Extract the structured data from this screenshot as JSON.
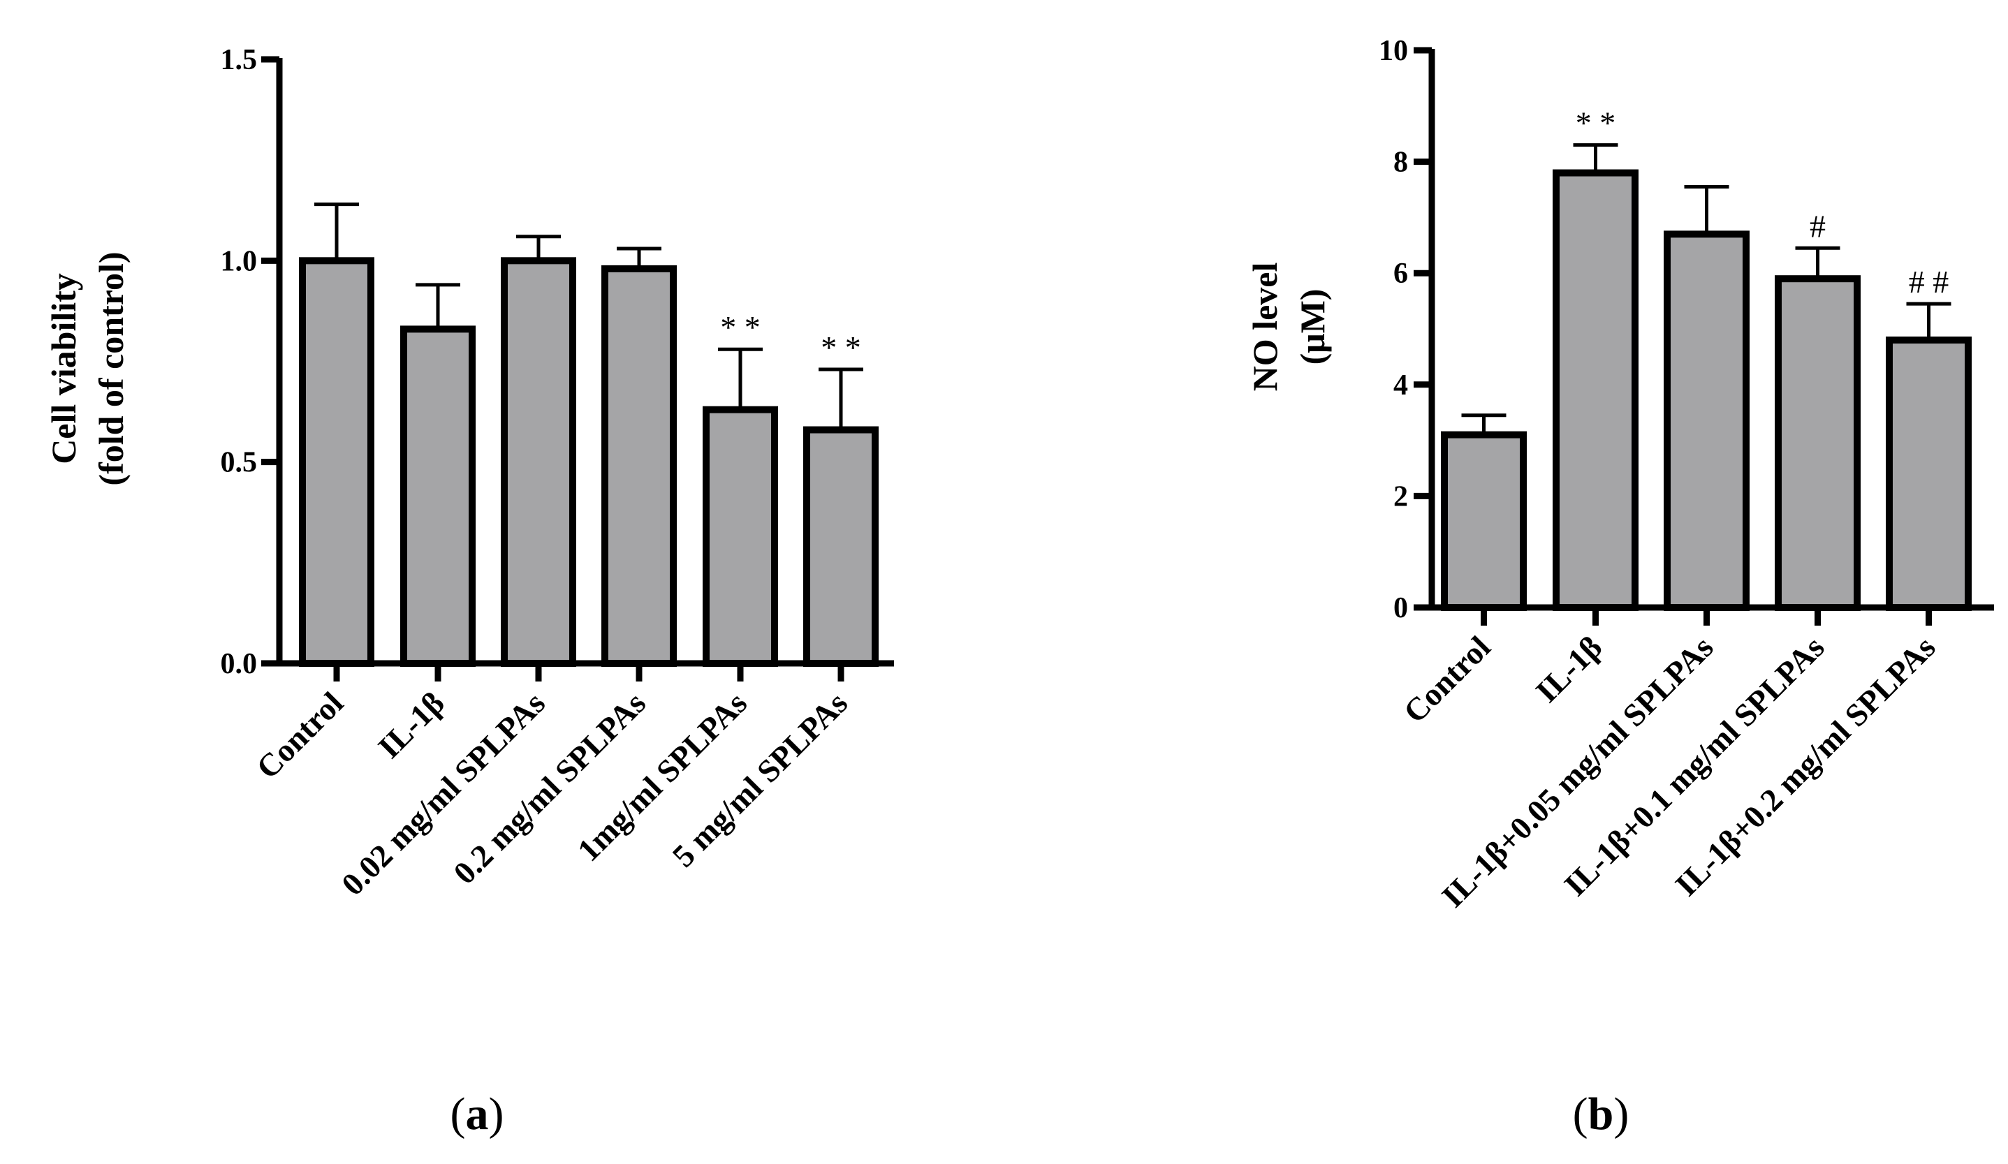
{
  "colors": {
    "bar_fill": "#a5a5a7",
    "bar_stroke": "#000000",
    "axis": "#000000"
  },
  "chart_data": [
    {
      "type": "bar",
      "panel_label": "a",
      "ylabel_line1": "Cell viability",
      "ylabel_line2": "(fold of control)",
      "ylim": [
        0,
        1.5
      ],
      "yticks": [
        0.0,
        0.5,
        1.0,
        1.5
      ],
      "ytick_labels": [
        "0.0",
        "0.5",
        "1.0",
        "1.5"
      ],
      "categories": [
        "Control",
        "IL-1β",
        "0.02 mg/ml SPLPAs",
        "0.2 mg/ml SPLPAs",
        "1mg/ml SPLPAs",
        "5 mg/ml SPLPAs"
      ],
      "values": [
        1.0,
        0.83,
        1.0,
        0.98,
        0.63,
        0.58
      ],
      "errors": [
        0.14,
        0.11,
        0.06,
        0.05,
        0.15,
        0.15
      ],
      "annotations": [
        "",
        "",
        "",
        "",
        "**",
        "**"
      ]
    },
    {
      "type": "bar",
      "panel_label": "b",
      "ylabel_line1": "NO level",
      "ylabel_line2": "(μM)",
      "ylim": [
        0,
        10
      ],
      "yticks": [
        0,
        2,
        4,
        6,
        8,
        10
      ],
      "ytick_labels": [
        "0",
        "2",
        "4",
        "6",
        "8",
        "10"
      ],
      "categories": [
        "Control",
        "IL-1β",
        "IL-1β+0.05 mg/ml SPLPAs",
        "IL-1β+0.1 mg/ml SPLPAs",
        "IL-1β+0.2 mg/ml SPLPAs"
      ],
      "values": [
        3.1,
        7.8,
        6.7,
        5.9,
        4.8
      ],
      "errors": [
        0.35,
        0.5,
        0.85,
        0.55,
        0.65
      ],
      "annotations": [
        "",
        "**",
        "",
        "#",
        "##"
      ]
    }
  ]
}
